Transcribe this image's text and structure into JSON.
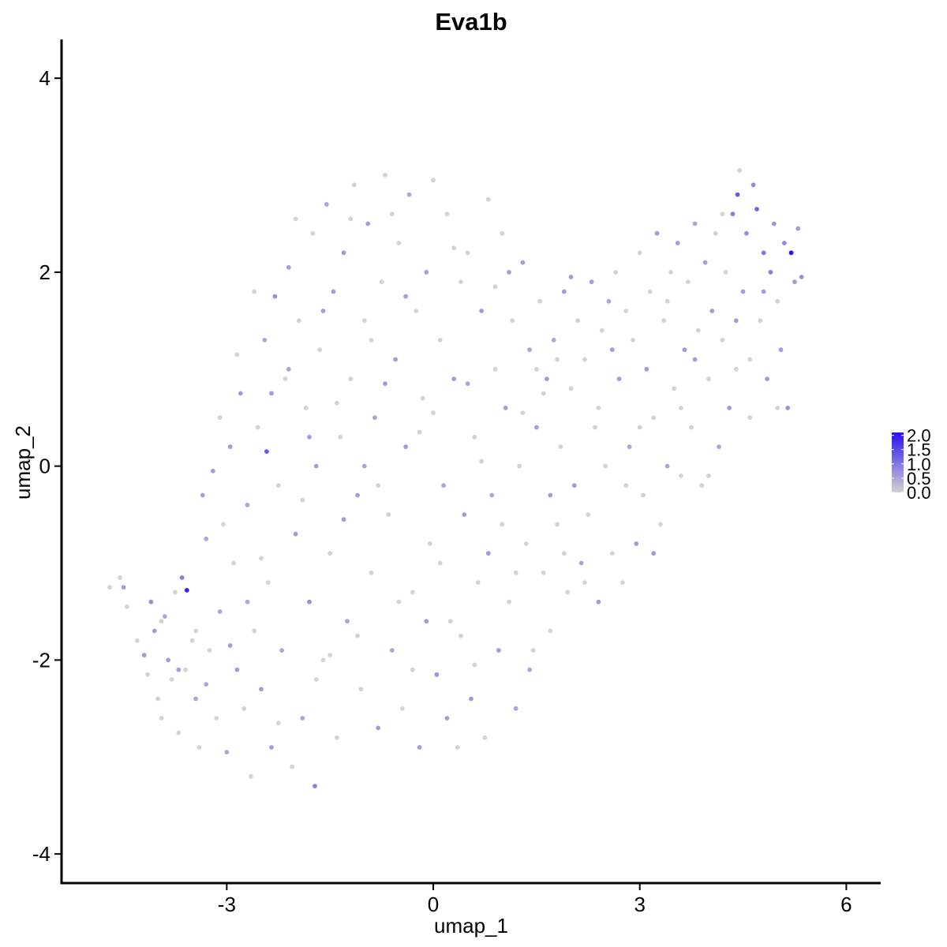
{
  "chart_data": {
    "type": "scatter",
    "title": "Eva1b",
    "xlabel": "umap_1",
    "ylabel": "umap_2",
    "xlim": [
      -5.4,
      6.5
    ],
    "ylim": [
      -4.3,
      4.4
    ],
    "x_ticks": [
      {
        "value": -3,
        "label": "-3"
      },
      {
        "value": 0,
        "label": "0"
      },
      {
        "value": 3,
        "label": "3"
      },
      {
        "value": 6,
        "label": "6"
      }
    ],
    "y_ticks": [
      {
        "value": -4,
        "label": "-4"
      },
      {
        "value": -2,
        "label": "-2"
      },
      {
        "value": 0,
        "label": "0"
      },
      {
        "value": 2,
        "label": "2"
      },
      {
        "value": 4,
        "label": "4"
      }
    ],
    "grid": false,
    "color_scale": {
      "low_color": "#d3d3d3",
      "high_color": "#2a10f0",
      "min": 0.0,
      "max": 2.1,
      "breaks": [
        {
          "value": 2.0,
          "label": "2.0"
        },
        {
          "value": 1.5,
          "label": "1.5"
        },
        {
          "value": 1.0,
          "label": "1.0"
        },
        {
          "value": 0.5,
          "label": "0.5"
        },
        {
          "value": 0.0,
          "label": "0.0"
        }
      ],
      "legend_position": "right"
    },
    "points": [
      [
        -4.7,
        -1.25,
        0.0
      ],
      [
        -4.55,
        -1.15,
        0.0
      ],
      [
        -4.5,
        -1.25,
        0.6
      ],
      [
        -4.45,
        -1.45,
        0.0
      ],
      [
        -4.3,
        -1.8,
        0.0
      ],
      [
        -4.15,
        -2.15,
        0.0
      ],
      [
        -4.1,
        -1.4,
        0.7
      ],
      [
        -4.05,
        -1.7,
        0.6
      ],
      [
        -4.0,
        -2.4,
        0.0
      ],
      [
        -3.95,
        -2.6,
        0.0
      ],
      [
        -3.9,
        -1.55,
        0.5
      ],
      [
        -3.85,
        -2.0,
        0.6
      ],
      [
        -3.8,
        -2.2,
        0.0
      ],
      [
        -3.75,
        -1.3,
        0.0
      ],
      [
        -3.7,
        -2.75,
        0.0
      ],
      [
        -3.65,
        -1.15,
        0.9
      ],
      [
        -3.6,
        -2.1,
        0.0
      ],
      [
        -3.58,
        -1.28,
        1.9
      ],
      [
        -3.5,
        -1.8,
        0.0
      ],
      [
        -3.45,
        -2.4,
        0.5
      ],
      [
        -3.4,
        -2.9,
        0.0
      ],
      [
        -3.35,
        -0.3,
        0.6
      ],
      [
        -3.3,
        -2.25,
        0.5
      ],
      [
        -3.25,
        -1.9,
        0.0
      ],
      [
        -3.2,
        -0.05,
        0.6
      ],
      [
        -3.15,
        -2.6,
        0.0
      ],
      [
        -3.1,
        -1.5,
        0.5
      ],
      [
        -3.05,
        -0.6,
        0.0
      ],
      [
        -3.0,
        -2.95,
        0.5
      ],
      [
        -2.95,
        0.2,
        0.6
      ],
      [
        -2.9,
        -1.0,
        0.0
      ],
      [
        -2.85,
        -2.1,
        0.6
      ],
      [
        -2.8,
        0.75,
        0.6
      ],
      [
        -2.75,
        -2.5,
        0.0
      ],
      [
        -2.7,
        -0.4,
        0.5
      ],
      [
        -2.65,
        -3.2,
        0.0
      ],
      [
        -2.6,
        -1.7,
        0.0
      ],
      [
        -2.55,
        0.4,
        0.0
      ],
      [
        -2.5,
        -2.3,
        0.6
      ],
      [
        -2.45,
        1.3,
        0.5
      ],
      [
        -2.42,
        0.15,
        1.3
      ],
      [
        -2.4,
        -1.2,
        0.0
      ],
      [
        -2.35,
        -2.9,
        0.6
      ],
      [
        -2.3,
        1.75,
        0.7
      ],
      [
        -2.25,
        -0.2,
        0.0
      ],
      [
        -2.2,
        -1.9,
        0.5
      ],
      [
        -2.15,
        0.9,
        0.0
      ],
      [
        -2.1,
        2.05,
        0.6
      ],
      [
        -2.05,
        -3.1,
        0.0
      ],
      [
        -2.0,
        -0.7,
        0.6
      ],
      [
        -1.95,
        1.5,
        0.0
      ],
      [
        -1.9,
        -2.6,
        0.5
      ],
      [
        -1.85,
        0.6,
        0.0
      ],
      [
        -1.8,
        -1.4,
        0.7
      ],
      [
        -1.75,
        2.4,
        0.0
      ],
      [
        -1.72,
        -3.3,
        0.9
      ],
      [
        -1.7,
        0.0,
        0.6
      ],
      [
        -1.65,
        1.2,
        0.0
      ],
      [
        -1.6,
        -2.0,
        0.0
      ],
      [
        -1.55,
        2.7,
        0.5
      ],
      [
        -1.5,
        -0.9,
        0.0
      ],
      [
        -1.45,
        1.8,
        0.6
      ],
      [
        -1.4,
        -2.8,
        0.0
      ],
      [
        -1.35,
        0.3,
        0.0
      ],
      [
        -1.3,
        2.2,
        0.6
      ],
      [
        -1.25,
        -1.6,
        0.5
      ],
      [
        -1.2,
        0.9,
        0.0
      ],
      [
        -1.15,
        2.9,
        0.0
      ],
      [
        -1.1,
        -0.3,
        0.6
      ],
      [
        -1.05,
        -2.3,
        0.0
      ],
      [
        -1.0,
        1.5,
        0.0
      ],
      [
        -0.95,
        2.5,
        0.6
      ],
      [
        -0.9,
        -1.1,
        0.0
      ],
      [
        -0.85,
        0.5,
        0.5
      ],
      [
        -0.8,
        -2.7,
        0.6
      ],
      [
        -0.75,
        1.9,
        0.0
      ],
      [
        -0.7,
        3.0,
        0.0
      ],
      [
        -0.65,
        -0.5,
        0.0
      ],
      [
        -0.6,
        -1.9,
        0.5
      ],
      [
        -0.55,
        1.1,
        0.6
      ],
      [
        -0.5,
        2.3,
        0.0
      ],
      [
        -0.45,
        -2.5,
        0.0
      ],
      [
        -0.4,
        0.2,
        0.6
      ],
      [
        -0.35,
        2.8,
        0.5
      ],
      [
        -0.3,
        -1.3,
        0.0
      ],
      [
        -0.25,
        1.6,
        0.0
      ],
      [
        -0.2,
        -2.9,
        0.6
      ],
      [
        -0.15,
        0.7,
        0.0
      ],
      [
        -0.1,
        2.0,
        0.6
      ],
      [
        -0.05,
        -0.8,
        0.0
      ],
      [
        0.0,
        2.95,
        0.0
      ],
      [
        0.05,
        -2.15,
        0.7
      ],
      [
        0.1,
        1.3,
        0.0
      ],
      [
        0.15,
        -0.2,
        0.5
      ],
      [
        0.2,
        2.6,
        0.0
      ],
      [
        0.25,
        -1.6,
        0.0
      ],
      [
        0.3,
        0.9,
        0.6
      ],
      [
        0.35,
        -2.9,
        0.0
      ],
      [
        0.4,
        1.9,
        0.0
      ],
      [
        0.45,
        -0.5,
        0.6
      ],
      [
        0.5,
        2.2,
        0.0
      ],
      [
        0.55,
        -2.4,
        0.6
      ],
      [
        0.6,
        0.3,
        0.0
      ],
      [
        0.65,
        -1.2,
        0.0
      ],
      [
        0.7,
        1.6,
        0.6
      ],
      [
        0.75,
        -2.8,
        0.0
      ],
      [
        0.8,
        2.75,
        0.0
      ],
      [
        0.85,
        -0.3,
        0.5
      ],
      [
        0.9,
        1.0,
        0.0
      ],
      [
        0.95,
        -1.9,
        0.6
      ],
      [
        1.0,
        2.4,
        0.0
      ],
      [
        1.05,
        0.6,
        0.6
      ],
      [
        1.1,
        -1.4,
        0.0
      ],
      [
        1.15,
        1.5,
        0.0
      ],
      [
        1.2,
        -2.5,
        0.5
      ],
      [
        1.25,
        0.0,
        0.0
      ],
      [
        1.3,
        2.1,
        0.6
      ],
      [
        1.35,
        -0.8,
        0.0
      ],
      [
        1.4,
        1.2,
        0.5
      ],
      [
        1.45,
        -1.9,
        0.0
      ],
      [
        1.5,
        0.4,
        0.6
      ],
      [
        1.55,
        1.7,
        0.0
      ],
      [
        1.6,
        -1.1,
        0.0
      ],
      [
        1.65,
        0.9,
        0.6
      ],
      [
        1.7,
        -1.7,
        0.0
      ],
      [
        1.75,
        1.3,
        0.5
      ],
      [
        1.8,
        -0.6,
        0.0
      ],
      [
        1.85,
        0.2,
        0.0
      ],
      [
        1.9,
        1.8,
        0.6
      ],
      [
        1.95,
        -1.3,
        0.0
      ],
      [
        2.0,
        0.8,
        0.0
      ],
      [
        2.05,
        -0.2,
        0.6
      ],
      [
        2.1,
        1.5,
        0.0
      ],
      [
        2.15,
        -1.0,
        0.5
      ],
      [
        2.2,
        1.1,
        0.0
      ],
      [
        2.25,
        -0.5,
        0.0
      ],
      [
        2.3,
        1.9,
        0.6
      ],
      [
        2.35,
        0.4,
        0.0
      ],
      [
        2.4,
        -1.4,
        0.6
      ],
      [
        2.45,
        1.4,
        0.0
      ],
      [
        2.5,
        0.0,
        0.0
      ],
      [
        2.55,
        1.7,
        0.5
      ],
      [
        2.6,
        -0.9,
        0.0
      ],
      [
        2.65,
        2.0,
        0.0
      ],
      [
        2.7,
        0.9,
        0.6
      ],
      [
        2.75,
        -1.2,
        0.0
      ],
      [
        2.8,
        1.6,
        0.0
      ],
      [
        2.85,
        0.2,
        0.5
      ],
      [
        2.9,
        1.3,
        0.0
      ],
      [
        2.95,
        -0.8,
        0.6
      ],
      [
        3.0,
        2.2,
        0.0
      ],
      [
        3.05,
        -0.3,
        0.0
      ],
      [
        3.1,
        1.0,
        0.6
      ],
      [
        3.15,
        1.8,
        0.0
      ],
      [
        3.2,
        0.5,
        0.0
      ],
      [
        3.25,
        2.4,
        0.6
      ],
      [
        3.3,
        -0.6,
        0.0
      ],
      [
        3.35,
        1.5,
        0.0
      ],
      [
        3.4,
        0.0,
        0.5
      ],
      [
        3.45,
        2.0,
        0.0
      ],
      [
        3.5,
        0.8,
        0.0
      ],
      [
        3.55,
        2.3,
        0.6
      ],
      [
        3.6,
        -0.1,
        0.0
      ],
      [
        3.65,
        1.2,
        0.6
      ],
      [
        3.7,
        1.9,
        0.0
      ],
      [
        3.75,
        0.4,
        0.0
      ],
      [
        3.8,
        2.5,
        0.5
      ],
      [
        3.85,
        1.4,
        0.0
      ],
      [
        3.9,
        -0.2,
        0.0
      ],
      [
        3.95,
        2.1,
        0.6
      ],
      [
        4.0,
        0.9,
        0.0
      ],
      [
        4.05,
        1.6,
        0.6
      ],
      [
        4.1,
        2.4,
        0.0
      ],
      [
        4.15,
        0.2,
        0.5
      ],
      [
        4.2,
        1.3,
        0.0
      ],
      [
        4.25,
        2.0,
        0.0
      ],
      [
        4.3,
        0.6,
        0.6
      ],
      [
        4.35,
        2.6,
        0.9
      ],
      [
        4.4,
        1.0,
        0.0
      ],
      [
        4.42,
        2.8,
        1.3
      ],
      [
        4.45,
        3.05,
        0.0
      ],
      [
        4.5,
        1.8,
        0.6
      ],
      [
        4.55,
        2.4,
        0.7
      ],
      [
        4.6,
        0.5,
        0.0
      ],
      [
        4.65,
        2.9,
        0.8
      ],
      [
        4.7,
        2.65,
        1.2
      ],
      [
        4.75,
        1.5,
        0.0
      ],
      [
        4.8,
        2.2,
        1.0
      ],
      [
        4.85,
        0.9,
        0.6
      ],
      [
        4.9,
        2.0,
        0.9
      ],
      [
        4.95,
        2.5,
        0.7
      ],
      [
        5.0,
        1.7,
        0.0
      ],
      [
        5.05,
        1.2,
        0.6
      ],
      [
        5.1,
        2.3,
        0.8
      ],
      [
        5.15,
        0.6,
        0.7
      ],
      [
        5.2,
        2.2,
        2.1
      ],
      [
        5.25,
        1.9,
        0.6
      ],
      [
        5.3,
        2.45,
        0.6
      ],
      [
        5.35,
        1.95,
        0.7
      ],
      [
        -4.2,
        -1.95,
        0.6
      ],
      [
        -3.95,
        -1.6,
        0.0
      ],
      [
        -3.7,
        -2.1,
        0.6
      ],
      [
        -3.45,
        -1.7,
        0.0
      ],
      [
        -3.3,
        -0.75,
        0.5
      ],
      [
        -3.1,
        0.5,
        0.0
      ],
      [
        -2.95,
        -1.85,
        0.6
      ],
      [
        -2.85,
        1.15,
        0.0
      ],
      [
        -2.7,
        -1.4,
        0.5
      ],
      [
        -2.6,
        1.8,
        0.0
      ],
      [
        -2.5,
        -0.95,
        0.0
      ],
      [
        -2.35,
        0.75,
        0.6
      ],
      [
        -2.25,
        -2.65,
        0.0
      ],
      [
        -2.1,
        1.0,
        0.5
      ],
      [
        -2.0,
        2.55,
        0.0
      ],
      [
        -1.9,
        -0.35,
        0.0
      ],
      [
        -1.8,
        0.3,
        0.6
      ],
      [
        -1.7,
        -2.2,
        0.0
      ],
      [
        -1.6,
        1.6,
        0.6
      ],
      [
        -1.5,
        -1.95,
        0.0
      ],
      [
        -1.4,
        0.65,
        0.0
      ],
      [
        -1.3,
        -0.55,
        0.6
      ],
      [
        -1.2,
        2.55,
        0.0
      ],
      [
        -1.1,
        -1.75,
        0.0
      ],
      [
        -1.0,
        0.0,
        0.5
      ],
      [
        -0.9,
        1.3,
        0.0
      ],
      [
        -0.8,
        -0.2,
        0.0
      ],
      [
        -0.7,
        0.85,
        0.6
      ],
      [
        -0.6,
        2.6,
        0.0
      ],
      [
        -0.5,
        -1.4,
        0.0
      ],
      [
        -0.4,
        1.75,
        0.6
      ],
      [
        -0.3,
        -2.1,
        0.0
      ],
      [
        -0.2,
        0.35,
        0.0
      ],
      [
        -0.1,
        -1.6,
        0.6
      ],
      [
        0.0,
        0.55,
        0.0
      ],
      [
        0.1,
        -1.0,
        0.0
      ],
      [
        0.2,
        -2.6,
        0.6
      ],
      [
        0.3,
        2.25,
        0.0
      ],
      [
        0.4,
        -1.75,
        0.0
      ],
      [
        0.5,
        0.85,
        0.5
      ],
      [
        0.6,
        -2.05,
        0.0
      ],
      [
        0.7,
        0.05,
        0.0
      ],
      [
        0.8,
        -0.9,
        0.6
      ],
      [
        0.9,
        1.85,
        0.0
      ],
      [
        1.0,
        -0.6,
        0.0
      ],
      [
        1.1,
        2.0,
        0.6
      ],
      [
        1.2,
        -1.1,
        0.0
      ],
      [
        1.3,
        0.55,
        0.0
      ],
      [
        1.4,
        -2.1,
        0.5
      ],
      [
        1.5,
        1.0,
        0.0
      ],
      [
        1.6,
        0.75,
        0.0
      ],
      [
        1.7,
        -0.3,
        0.6
      ],
      [
        1.8,
        1.1,
        0.0
      ],
      [
        1.9,
        -0.9,
        0.0
      ],
      [
        2.0,
        1.95,
        0.6
      ],
      [
        2.2,
        -1.2,
        0.0
      ],
      [
        2.4,
        0.6,
        0.0
      ],
      [
        2.6,
        1.2,
        0.6
      ],
      [
        2.8,
        -0.2,
        0.0
      ],
      [
        3.0,
        0.4,
        0.0
      ],
      [
        3.2,
        -0.9,
        0.6
      ],
      [
        3.4,
        1.7,
        0.0
      ],
      [
        3.6,
        0.6,
        0.0
      ],
      [
        3.8,
        1.1,
        0.6
      ],
      [
        4.0,
        -0.1,
        0.0
      ],
      [
        4.2,
        2.6,
        0.0
      ],
      [
        4.4,
        1.5,
        0.6
      ],
      [
        4.6,
        1.1,
        0.0
      ],
      [
        4.8,
        1.8,
        0.6
      ],
      [
        5.0,
        0.6,
        0.0
      ]
    ]
  }
}
